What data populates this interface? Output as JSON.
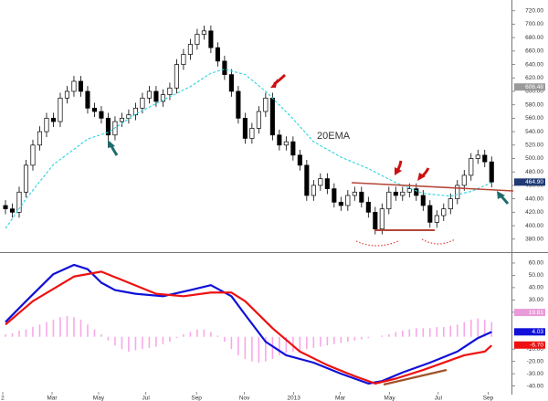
{
  "chart_data": [
    {
      "type": "candlestick",
      "xlim": [
        -0.8,
        73.9
      ],
      "ylim": [
        362,
        736
      ],
      "yticks": [
        {
          "value": 380,
          "label": "380.00"
        },
        {
          "value": 400,
          "label": "400.00"
        },
        {
          "value": 420,
          "label": "420.00"
        },
        {
          "value": 440,
          "label": "440.00"
        },
        {
          "value": 460,
          "label": "460.00"
        },
        {
          "value": 480,
          "label": "480.00"
        },
        {
          "value": 500,
          "label": "500.00"
        },
        {
          "value": 520,
          "label": "520.00"
        },
        {
          "value": 540,
          "label": "540.00"
        },
        {
          "value": 560,
          "label": "560.00"
        },
        {
          "value": 580,
          "label": "580.00"
        },
        {
          "value": 600,
          "label": "600.00"
        },
        {
          "value": 620,
          "label": "620.00"
        },
        {
          "value": 640,
          "label": "640.00"
        },
        {
          "value": 660,
          "label": "660.00"
        },
        {
          "value": 680,
          "label": "680.00"
        },
        {
          "value": 700,
          "label": "700.00"
        },
        {
          "value": 720,
          "label": "720.00"
        }
      ],
      "x": [
        0,
        1,
        2,
        3,
        4,
        5,
        6,
        7,
        8,
        9,
        10,
        11,
        12,
        13,
        14,
        15,
        16,
        17,
        18,
        19,
        20,
        21,
        22,
        23,
        24,
        25,
        26,
        27,
        28,
        29,
        30,
        31,
        32,
        33,
        34,
        35,
        36,
        37,
        38,
        39,
        40,
        41,
        42,
        43,
        44,
        45,
        46,
        47,
        48,
        49,
        50,
        51,
        52,
        53,
        54,
        55,
        56,
        57,
        58,
        59,
        60,
        61,
        62,
        63,
        64,
        65,
        66,
        67,
        68,
        69,
        70,
        71
      ],
      "open": [
        430,
        425,
        420,
        450,
        490,
        520,
        540,
        560,
        555,
        590,
        600,
        615,
        600,
        575,
        570,
        560,
        535,
        555,
        560,
        565,
        575,
        590,
        600,
        585,
        595,
        605,
        640,
        655,
        670,
        685,
        690,
        665,
        645,
        625,
        600,
        560,
        530,
        545,
        570,
        590,
        535,
        520,
        525,
        505,
        490,
        445,
        460,
        470,
        455,
        435,
        430,
        445,
        450,
        435,
        420,
        395,
        425,
        450,
        445,
        450,
        455,
        445,
        430,
        405,
        415,
        425,
        440,
        460,
        475,
        500,
        505,
        495
      ],
      "high": [
        438,
        433,
        458,
        498,
        528,
        548,
        568,
        568,
        598,
        608,
        623,
        623,
        608,
        583,
        578,
        568,
        563,
        568,
        573,
        583,
        598,
        608,
        608,
        603,
        613,
        648,
        663,
        678,
        693,
        698,
        698,
        673,
        653,
        633,
        608,
        568,
        553,
        578,
        598,
        598,
        543,
        533,
        533,
        513,
        498,
        468,
        478,
        478,
        463,
        443,
        453,
        458,
        458,
        443,
        428,
        433,
        458,
        458,
        458,
        463,
        463,
        453,
        438,
        423,
        433,
        448,
        468,
        483,
        508,
        513,
        513,
        503
      ],
      "low": [
        417,
        412,
        412,
        442,
        482,
        512,
        532,
        547,
        547,
        582,
        592,
        592,
        567,
        562,
        552,
        527,
        527,
        547,
        552,
        557,
        567,
        582,
        577,
        577,
        587,
        597,
        632,
        647,
        662,
        677,
        657,
        637,
        617,
        592,
        552,
        522,
        522,
        537,
        562,
        527,
        512,
        512,
        497,
        482,
        437,
        437,
        452,
        447,
        427,
        422,
        422,
        437,
        427,
        412,
        387,
        387,
        417,
        437,
        437,
        442,
        437,
        422,
        397,
        397,
        407,
        417,
        432,
        452,
        467,
        492,
        487,
        457
      ],
      "close": [
        425,
        420,
        450,
        490,
        520,
        540,
        560,
        555,
        590,
        600,
        615,
        600,
        575,
        570,
        560,
        535,
        555,
        560,
        565,
        575,
        590,
        600,
        585,
        595,
        605,
        640,
        655,
        670,
        685,
        690,
        665,
        645,
        625,
        600,
        560,
        530,
        545,
        570,
        590,
        535,
        520,
        525,
        505,
        490,
        445,
        460,
        470,
        455,
        435,
        430,
        445,
        450,
        435,
        420,
        395,
        425,
        450,
        445,
        450,
        455,
        445,
        430,
        405,
        415,
        425,
        440,
        460,
        475,
        500,
        505,
        495,
        465
      ],
      "ema": {
        "name": "20EMA",
        "color": "#2ad4e0",
        "x": [
          0,
          3,
          7,
          12,
          15,
          19,
          23,
          27,
          30,
          32,
          35,
          38,
          42,
          45,
          49,
          53,
          57,
          61,
          65,
          68,
          71
        ],
        "values": [
          396,
          440,
          491,
          529,
          539,
          566,
          587,
          607,
          627,
          633,
          625,
          600,
          559,
          525,
          502,
          485,
          464,
          448,
          444,
          451,
          464
        ]
      },
      "value_markers": [
        {
          "value": 606.48,
          "color": "#9a9a9a"
        },
        {
          "value": 464.9,
          "label": "464.90",
          "color": "#1f3a73"
        }
      ]
    },
    {
      "type": "macd",
      "xlim": [
        -0.8,
        73.9
      ],
      "ylim": [
        -47,
        67.4
      ],
      "yticks": [
        {
          "value": 60,
          "label": "60.00"
        },
        {
          "value": 50,
          "label": "50.00"
        },
        {
          "value": 40,
          "label": "40.00"
        },
        {
          "value": 30,
          "label": "30.00"
        },
        {
          "value": 20,
          "label": "20.00"
        },
        {
          "value": -10,
          "label": "-10.00"
        },
        {
          "value": -20,
          "label": "-20.00"
        },
        {
          "value": -30,
          "label": "-30.00"
        },
        {
          "value": -40,
          "label": "-40.00"
        }
      ],
      "xticks": [
        {
          "value": -0.4,
          "label": "2"
        },
        {
          "value": 6.8,
          "label": "Mar"
        },
        {
          "value": 13.6,
          "label": "May"
        },
        {
          "value": 20.5,
          "label": "Jul"
        },
        {
          "value": 27.9,
          "label": "Sep"
        },
        {
          "value": 34.9,
          "label": "Nov"
        },
        {
          "value": 42.1,
          "label": "2013"
        },
        {
          "value": 48.9,
          "label": "Mar"
        },
        {
          "value": 56.1,
          "label": "May"
        },
        {
          "value": 63.2,
          "label": "Jul"
        },
        {
          "value": 70.5,
          "label": "Sep"
        }
      ],
      "series": [
        {
          "color": "#1010d8",
          "x": [
            0,
            3,
            7,
            10,
            12,
            14,
            16,
            19,
            23,
            27,
            30,
            33,
            35,
            38,
            41,
            45,
            49,
            53,
            55,
            58,
            62,
            66,
            69,
            71
          ],
          "values": [
            12,
            29,
            51,
            58.5,
            55,
            44,
            38,
            35,
            33,
            38,
            42,
            33,
            18,
            -4,
            -15,
            -21,
            -30,
            -38,
            -36,
            -29,
            -21,
            -12,
            -1,
            4
          ]
        },
        {
          "color": "#ee1111",
          "x": [
            0,
            4,
            10,
            14,
            18,
            22,
            26,
            30,
            33,
            35,
            39,
            43,
            47,
            51,
            54,
            57,
            61,
            65,
            67,
            70,
            71
          ],
          "values": [
            10,
            29,
            49,
            53,
            44,
            35,
            33,
            36,
            36,
            29,
            7,
            -12,
            -23,
            -32,
            -38,
            -34,
            -27,
            -19,
            -15,
            -12,
            -7
          ]
        }
      ],
      "histogram": {
        "color": "#f7a8e8",
        "x": [
          0,
          1,
          2,
          3,
          4,
          5,
          6,
          7,
          8,
          9,
          10,
          11,
          12,
          13,
          14,
          15,
          16,
          17,
          18,
          19,
          20,
          21,
          22,
          23,
          24,
          25,
          26,
          27,
          28,
          29,
          30,
          31,
          32,
          33,
          34,
          35,
          36,
          37,
          38,
          39,
          40,
          41,
          42,
          43,
          44,
          45,
          46,
          47,
          48,
          49,
          50,
          51,
          52,
          53,
          54,
          55,
          56,
          57,
          58,
          59,
          60,
          61,
          62,
          63,
          64,
          65,
          66,
          67,
          68,
          69,
          70,
          71
        ],
        "values": [
          2,
          3,
          5,
          6,
          8,
          10,
          12,
          14,
          16,
          17,
          16,
          14,
          10,
          6,
          2,
          -3,
          -7,
          -10,
          -12,
          -11,
          -10,
          -9,
          -8,
          -6,
          -4,
          -1,
          2,
          4,
          6,
          6,
          4,
          1,
          -4,
          -10,
          -15,
          -18,
          -20,
          -21,
          -20,
          -18,
          -15,
          -13,
          -12,
          -11,
          -10,
          -9,
          -8,
          -7,
          -6,
          -5,
          -4,
          -3,
          -2,
          -1,
          0,
          1,
          2,
          4,
          5,
          6,
          7,
          7,
          7,
          8,
          8,
          9,
          10,
          12,
          14,
          15,
          14,
          12
        ]
      },
      "value_markers": [
        {
          "value": 19.81,
          "color": "#e89ad8"
        },
        {
          "value": 4.03,
          "color": "#1010d8"
        },
        {
          "value": -6.7,
          "label": "-6.70",
          "color": "#ee1111"
        }
      ]
    }
  ]
}
